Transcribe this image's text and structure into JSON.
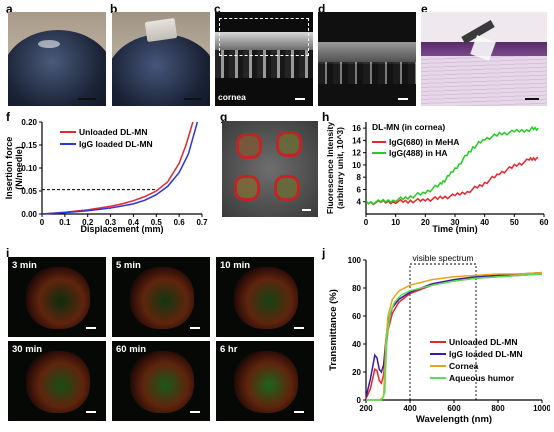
{
  "panels": {
    "a": {
      "letter": "a"
    },
    "b": {
      "letter": "b"
    },
    "c": {
      "letter": "c",
      "caption": "cornea"
    },
    "d": {
      "letter": "d"
    },
    "e": {
      "letter": "e"
    },
    "g": {
      "letter": "g"
    },
    "i": {
      "letter": "i",
      "time_labels": [
        "3 min",
        "5 min",
        "10 min",
        "30 min",
        "60 min",
        "6 hr"
      ]
    }
  },
  "chart_data": [
    {
      "panel": "f",
      "type": "line",
      "xlabel": "Displacement (mm)",
      "ylabel_lines": [
        "Insertion force",
        "(N/needle)"
      ],
      "xlim": [
        0,
        0.7
      ],
      "ylim": [
        0,
        0.2
      ],
      "xticks": [
        "0",
        "0.1",
        "0.2",
        "0.3",
        "0.4",
        "0.5",
        "0.6",
        "0.7"
      ],
      "yticks": [
        "0.00",
        "0.05",
        "0.10",
        "0.15",
        "0.20"
      ],
      "legend": "top-left",
      "reference_line_y": 0.053,
      "series": [
        {
          "name": "Unloaded DL-MN",
          "color": "#e8262a",
          "x": [
            0,
            0.1,
            0.2,
            0.3,
            0.35,
            0.4,
            0.45,
            0.5,
            0.55,
            0.6,
            0.63,
            0.66
          ],
          "y": [
            0,
            0.004,
            0.009,
            0.017,
            0.022,
            0.029,
            0.038,
            0.05,
            0.07,
            0.11,
            0.15,
            0.2
          ]
        },
        {
          "name": "IgG loaded DL-MN",
          "color": "#2b36d9",
          "x": [
            0,
            0.1,
            0.2,
            0.3,
            0.4,
            0.45,
            0.5,
            0.55,
            0.6,
            0.64,
            0.68
          ],
          "y": [
            0,
            0.003,
            0.007,
            0.013,
            0.022,
            0.03,
            0.042,
            0.06,
            0.09,
            0.13,
            0.2
          ]
        }
      ]
    },
    {
      "panel": "h",
      "type": "line",
      "title": "DL-MN (in cornea)",
      "xlabel": "Time (min)",
      "ylabel_lines": [
        "Fluorescence Intensity",
        "(arbitrary unit, 10^3)"
      ],
      "xlim": [
        0,
        60
      ],
      "ylim": [
        2,
        17
      ],
      "xticks": [
        "0",
        "10",
        "20",
        "30",
        "40",
        "50",
        "60"
      ],
      "yticks": [
        "4",
        "6",
        "8",
        "10",
        "12",
        "14",
        "16"
      ],
      "legend": "top-left",
      "series": [
        {
          "name": "IgG(680) in MeHA",
          "color": "#e8262a",
          "x": [
            0,
            5,
            10,
            15,
            20,
            25,
            30,
            35,
            40,
            45,
            50,
            55,
            58
          ],
          "y": [
            3.8,
            3.9,
            4.0,
            4.1,
            4.3,
            4.6,
            5.0,
            5.8,
            7.0,
            8.6,
            9.8,
            10.8,
            11.2
          ]
        },
        {
          "name": "IgG(488) in HA",
          "color": "#22cc22",
          "x": [
            0,
            5,
            10,
            15,
            20,
            25,
            28,
            32,
            36,
            40,
            45,
            50,
            55,
            58
          ],
          "y": [
            3.8,
            4.0,
            4.3,
            4.8,
            5.5,
            6.8,
            8.2,
            10.5,
            12.8,
            14.2,
            15.0,
            15.4,
            15.8,
            16.0
          ]
        }
      ]
    },
    {
      "panel": "j",
      "type": "line",
      "xlabel": "Wavelength (nm)",
      "ylabel": "Transmittance (%)",
      "xlim": [
        200,
        1000
      ],
      "ylim": [
        0,
        100
      ],
      "xticks": [
        "200",
        "400",
        "600",
        "800",
        "1000"
      ],
      "yticks": [
        "0",
        "20",
        "40",
        "60",
        "80",
        "100"
      ],
      "legend": "bottom-right",
      "annotation": "visible spectrum",
      "annotation_range": [
        400,
        700
      ],
      "series": [
        {
          "name": "Unloaded DL-MN",
          "color": "#e8262a",
          "x": [
            200,
            220,
            240,
            250,
            260,
            270,
            280,
            290,
            300,
            320,
            350,
            400,
            500,
            600,
            700,
            800,
            900,
            1000
          ],
          "y": [
            1,
            8,
            22,
            21,
            14,
            12,
            18,
            35,
            50,
            62,
            70,
            76,
            82,
            85,
            87,
            88,
            89,
            90
          ]
        },
        {
          "name": "IgG loaded DL-MN",
          "color": "#3a1aa8",
          "x": [
            200,
            220,
            240,
            250,
            260,
            270,
            280,
            290,
            300,
            320,
            350,
            400,
            500,
            600,
            700,
            800,
            900,
            1000
          ],
          "y": [
            2,
            15,
            32,
            30,
            22,
            20,
            25,
            42,
            56,
            66,
            72,
            77,
            83,
            86,
            88,
            89,
            90,
            91
          ]
        },
        {
          "name": "Cornea",
          "color": "#e8a317",
          "x": [
            200,
            260,
            280,
            290,
            300,
            320,
            350,
            400,
            500,
            600,
            700,
            800,
            900,
            1000
          ],
          "y": [
            0,
            0,
            2,
            40,
            60,
            72,
            78,
            82,
            86,
            88,
            89,
            90,
            90,
            91
          ]
        },
        {
          "name": "Aqueous humor",
          "color": "#55e055",
          "x": [
            200,
            270,
            285,
            295,
            310,
            330,
            360,
            400,
            500,
            600,
            700,
            800,
            900,
            1000
          ],
          "y": [
            0,
            0,
            5,
            45,
            62,
            70,
            75,
            78,
            82,
            85,
            87,
            88,
            89,
            90
          ]
        }
      ]
    }
  ]
}
